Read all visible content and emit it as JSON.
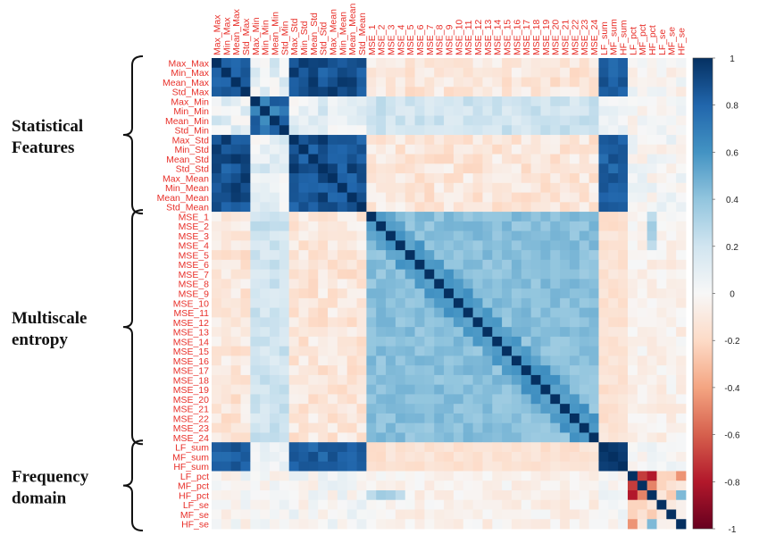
{
  "chart_data": {
    "type": "heatmap",
    "title": "",
    "variables": [
      "Max_Max",
      "Min_Max",
      "Mean_Max",
      "Std_Max",
      "Max_Min",
      "Min_Min",
      "Mean_Min",
      "Std_Min",
      "Max_Std",
      "Min_Std",
      "Mean_Std",
      "Std_Std",
      "Max_Mean",
      "Min_Mean",
      "Mean_Mean",
      "Std_Mean",
      "MSE_1",
      "MSE_2",
      "MSE_3",
      "MSE_4",
      "MSE_5",
      "MSE_6",
      "MSE_7",
      "MSE_8",
      "MSE_9",
      "MSE_10",
      "MSE_11",
      "MSE_12",
      "MSE_13",
      "MSE_14",
      "MSE_15",
      "MSE_16",
      "MSE_17",
      "MSE_18",
      "MSE_19",
      "MSE_20",
      "MSE_21",
      "MSE_22",
      "MSE_23",
      "MSE_24",
      "LF_sum",
      "MF_sum",
      "HF_sum",
      "LF_pct",
      "MF_pct",
      "HF_pct",
      "LF_se",
      "MF_se",
      "HF_se"
    ],
    "groups": [
      {
        "label_lines": [
          "Statistical",
          "Features"
        ],
        "start": 0,
        "end": 15
      },
      {
        "label_lines": [
          "Multiscale",
          "entropy"
        ],
        "start": 16,
        "end": 39
      },
      {
        "label_lines": [
          "Frequency",
          "domain"
        ],
        "start": 40,
        "end": 48
      }
    ],
    "value_range": [
      -1,
      1
    ],
    "colorbar_ticks": [
      "1",
      "0.8",
      "0.6",
      "0.4",
      "0.2",
      "0",
      "-0.2",
      "-0.4",
      "-0.6",
      "-0.8",
      "-1"
    ],
    "block_correlations": {
      "stat_strong_clusters": {
        "rows": [
          0,
          1,
          2,
          3,
          8,
          9,
          10,
          11,
          12,
          13,
          14,
          15
        ],
        "value": 0.88
      },
      "stat_min_cluster": {
        "rows": [
          4,
          5,
          6,
          7
        ],
        "value": 0.75
      },
      "stat_between_clusters": 0.1,
      "mse_vs_mse": 0.42,
      "stat_vs_mse": -0.12,
      "stat_cluster_vs_freq_sum": 0.82,
      "stat_min_vs_freq_sum": 0.05,
      "mse_vs_freq_sum": -0.15,
      "freq_sum_vs_freq_sum": 0.95,
      "LF_pct_vs_MF_pct": -0.7,
      "LF_pct_vs_HF_pct": -0.8,
      "MF_pct_vs_HF_pct": -0.5,
      "pct_vs_se": -0.4,
      "diagonal": 1
    },
    "colors": {
      "positive": "#053061",
      "neutral": "#f7f7f7",
      "negative": "#67001f"
    }
  }
}
